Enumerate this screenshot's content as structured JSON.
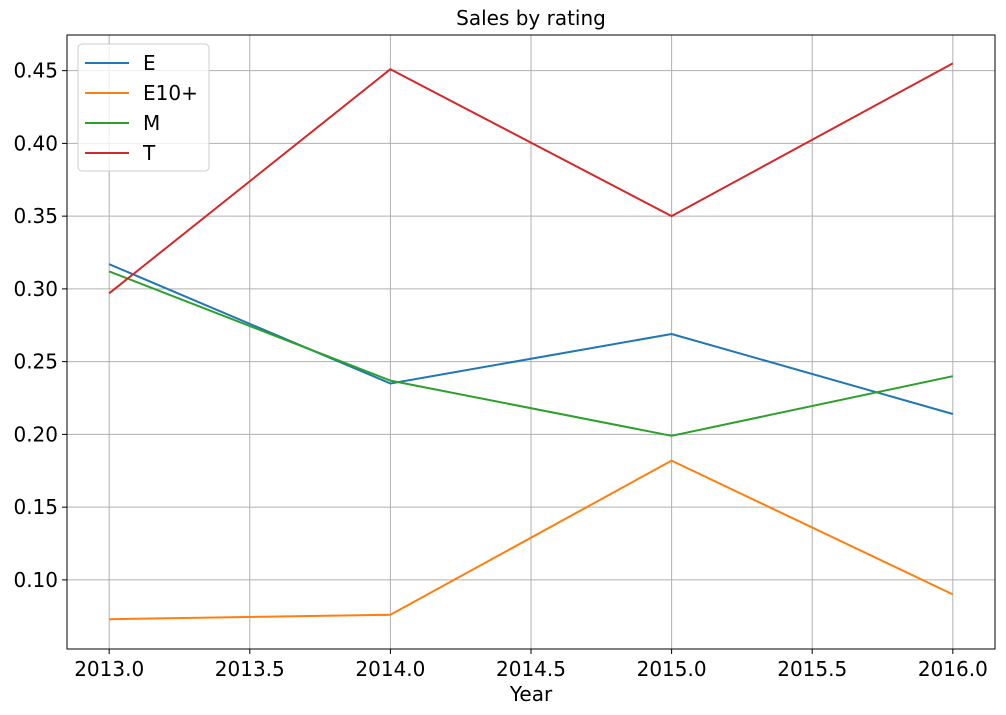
{
  "chart_data": {
    "type": "line",
    "title": "Sales by rating",
    "xlabel": "Year",
    "ylabel": "",
    "x": [
      2013,
      2014,
      2015,
      2016
    ],
    "xlim": [
      2012.85,
      2016.15
    ],
    "ylim": [
      0.0525,
      0.4745
    ],
    "xticks": [
      2013.0,
      2013.5,
      2014.0,
      2014.5,
      2015.0,
      2015.5,
      2016.0
    ],
    "xtick_labels": [
      "2013.0",
      "2013.5",
      "2014.0",
      "2014.5",
      "2015.0",
      "2015.5",
      "2016.0"
    ],
    "yticks": [
      0.1,
      0.15,
      0.2,
      0.25,
      0.3,
      0.35,
      0.4,
      0.45
    ],
    "ytick_labels": [
      "0.10",
      "0.15",
      "0.20",
      "0.25",
      "0.30",
      "0.35",
      "0.40",
      "0.45"
    ],
    "grid": true,
    "legend_position": "top-left",
    "series": [
      {
        "name": "E",
        "color": "#1f77b4",
        "values": [
          0.317,
          0.235,
          0.269,
          0.214
        ]
      },
      {
        "name": "E10+",
        "color": "#ff7f0e",
        "values": [
          0.073,
          0.076,
          0.182,
          0.09
        ]
      },
      {
        "name": "M",
        "color": "#2ca02c",
        "values": [
          0.312,
          0.237,
          0.199,
          0.24
        ]
      },
      {
        "name": "T",
        "color": "#d62728",
        "values": [
          0.297,
          0.451,
          0.35,
          0.455
        ]
      }
    ]
  }
}
